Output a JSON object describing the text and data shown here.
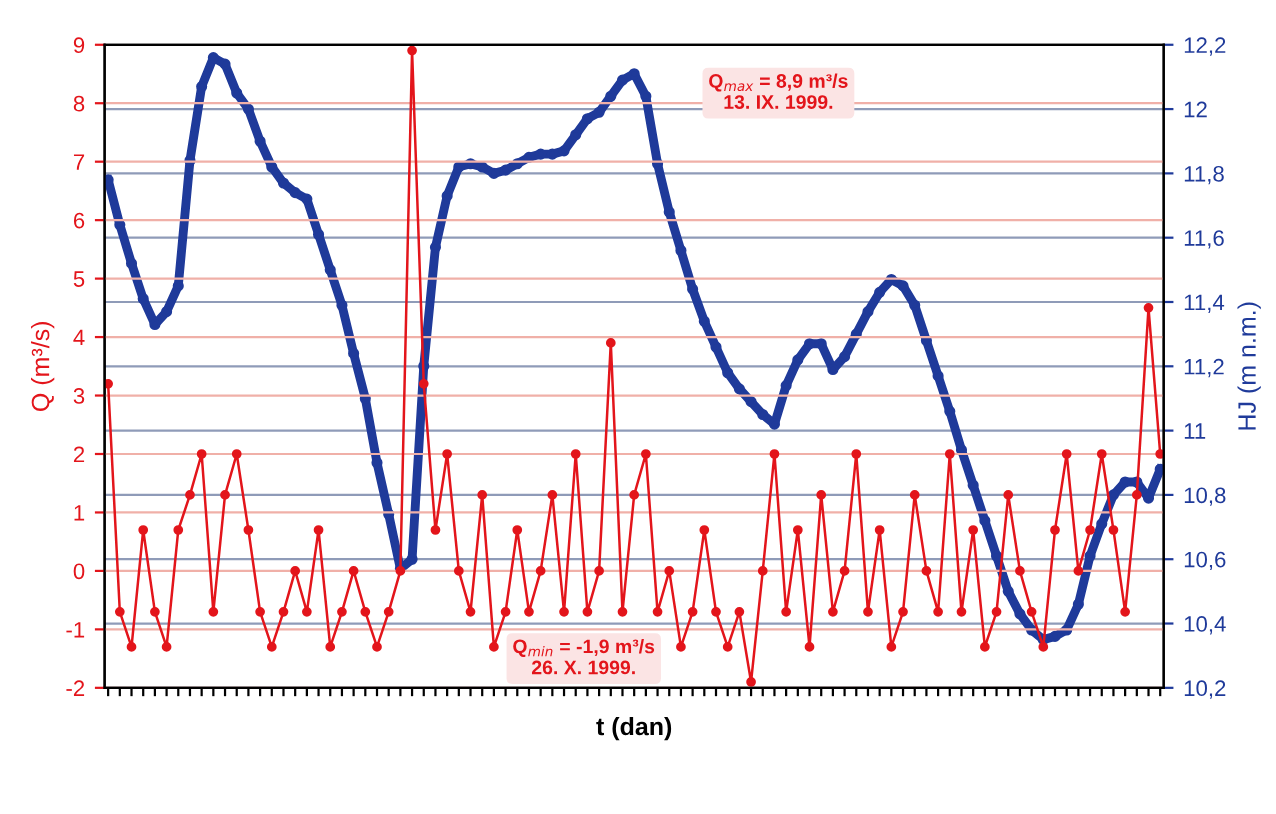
{
  "chart_data": {
    "type": "line",
    "xlabel": "t (dan)",
    "ylabel": "Q (m³/s)",
    "y2label": "HJ (m n.m.)",
    "categories": [
      null,
      null,
      null,
      null,
      null,
      null,
      null,
      null,
      null,
      null,
      null,
      null,
      null,
      null,
      null,
      null,
      null,
      null,
      null,
      null,
      null,
      null,
      null,
      null,
      null,
      null,
      null,
      null,
      null,
      null,
      null,
      null,
      null,
      null,
      null,
      null,
      null,
      null,
      null,
      null,
      null,
      null,
      null,
      null,
      null,
      null,
      null,
      null,
      null,
      null,
      null,
      null,
      null,
      null,
      null,
      null,
      null,
      null,
      null,
      null,
      null,
      null,
      null,
      null,
      null,
      null,
      null,
      null,
      null,
      null,
      null,
      null,
      null,
      null,
      null,
      null,
      null,
      null,
      null,
      null,
      null,
      null,
      null,
      null,
      null,
      null,
      null,
      null,
      null,
      null,
      null
    ],
    "ylim": [
      -2,
      9
    ],
    "yticks": [
      -2,
      -1,
      0,
      1,
      2,
      3,
      4,
      5,
      6,
      7,
      8,
      9
    ],
    "y2lim": [
      10.2,
      12.2
    ],
    "y2ticks": [
      {
        "value": 10.2,
        "label": "10,2"
      },
      {
        "value": 10.4,
        "label": "10,4"
      },
      {
        "value": 10.6,
        "label": "10,6"
      },
      {
        "value": 10.8,
        "label": "10,8"
      },
      {
        "value": 11.0,
        "label": "11"
      },
      {
        "value": 11.2,
        "label": "11,2"
      },
      {
        "value": 11.4,
        "label": "11,4"
      },
      {
        "value": 11.6,
        "label": "11,6"
      },
      {
        "value": 11.8,
        "label": "11,8"
      },
      {
        "value": 12.0,
        "label": "12"
      },
      {
        "value": 12.2,
        "label": "12,2"
      }
    ],
    "grid": true,
    "marker": "circle",
    "line_style": "solid",
    "series": [
      {
        "color": "#e3151b",
        "values": [
          3.2,
          -0.7,
          -1.3,
          0.7,
          -0.7,
          -1.3,
          0.7,
          1.3,
          2.0,
          -0.7,
          1.3,
          2.0,
          0.7,
          -0.7,
          -1.3,
          -0.7,
          0,
          -0.7,
          0.7,
          -1.3,
          -0.7,
          0,
          -0.7,
          -1.3,
          -0.7,
          0,
          8.9,
          3.2,
          0.7,
          2.0,
          0,
          -0.7,
          1.3,
          -1.3,
          -0.7,
          0.7,
          -0.7,
          0,
          1.3,
          -0.7,
          2.0,
          -0.7,
          0,
          3.9,
          -0.7,
          1.3,
          2.0,
          -0.7,
          0,
          -1.3,
          -0.7,
          0.7,
          -0.7,
          -1.3,
          -0.7,
          -1.9,
          0,
          2.0,
          -0.7,
          0.7,
          -1.3,
          1.3,
          -0.7,
          0,
          2.0,
          -0.7,
          0.7,
          -1.3,
          -0.7,
          1.3,
          0,
          -0.7,
          2.0,
          -0.7,
          0.7,
          -1.3,
          -0.7,
          1.3,
          0,
          -0.7,
          -1.3,
          0.7,
          2.0,
          0,
          0.7,
          2.0,
          0.7,
          -0.7,
          1.3,
          4.5,
          2.0
        ]
      },
      {
        "color": "#1f3a9a",
        "axis": "y2",
        "values": [
          11.78,
          11.64,
          11.52,
          11.41,
          11.33,
          11.37,
          11.45,
          11.84,
          12.07,
          12.16,
          12.14,
          12.05,
          12.0,
          11.9,
          11.82,
          11.77,
          11.74,
          11.72,
          11.61,
          11.5,
          11.39,
          11.24,
          11.1,
          10.9,
          10.74,
          10.57,
          10.6,
          11.2,
          11.57,
          11.73,
          11.82,
          11.83,
          11.82,
          11.8,
          11.81,
          11.83,
          11.85,
          11.86,
          11.86,
          11.87,
          11.92,
          11.97,
          11.99,
          12.04,
          12.09,
          12.11,
          12.04,
          11.83,
          11.68,
          11.56,
          11.44,
          11.34,
          11.26,
          11.18,
          11.13,
          11.09,
          11.05,
          11.02,
          11.14,
          11.22,
          11.27,
          11.27,
          11.19,
          11.23,
          11.3,
          11.37,
          11.43,
          11.47,
          11.45,
          11.39,
          11.28,
          11.17,
          11.06,
          10.94,
          10.83,
          10.72,
          10.61,
          10.5,
          10.43,
          10.38,
          10.35,
          10.36,
          10.38,
          10.46,
          10.61,
          10.71,
          10.8,
          10.84,
          10.84,
          10.79,
          10.88
        ]
      }
    ],
    "annotations": [
      "Q$_{max}$ = 8,9 m³/s\n13. IX. 1999.",
      "Q$_{min}$ = -1,9 m³/s\n26. X. 1999."
    ]
  }
}
